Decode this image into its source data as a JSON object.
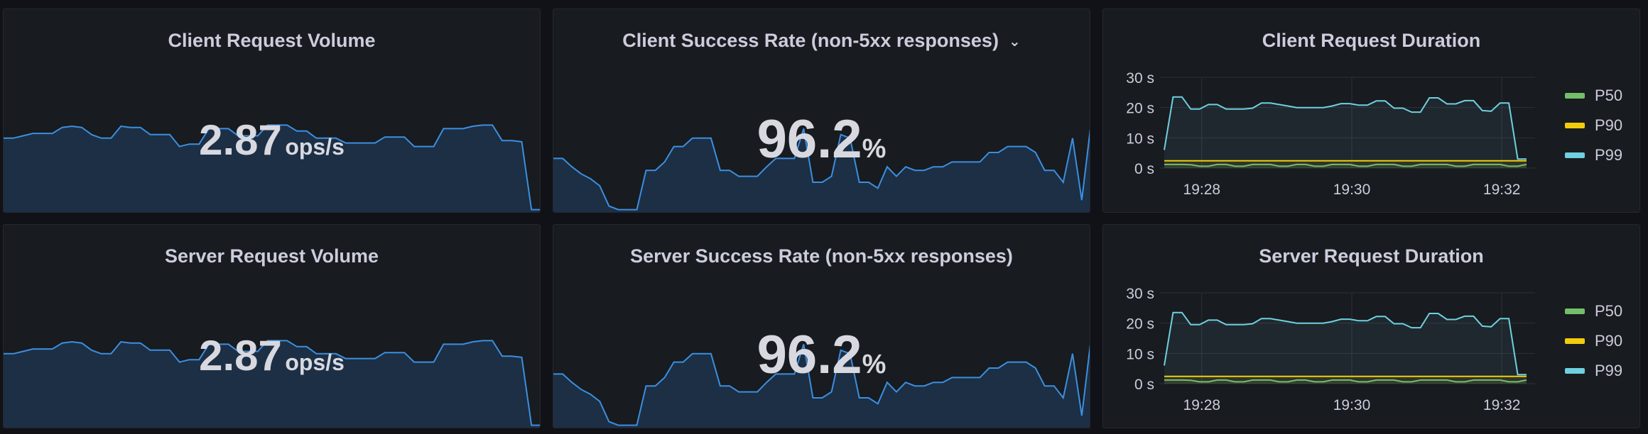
{
  "panels": {
    "client_volume": {
      "title": "Client Request Volume",
      "value": "2.87",
      "unit": "ops/s"
    },
    "client_success": {
      "title": "Client Success Rate (non-5xx responses)",
      "value": "96.2",
      "unit": "%"
    },
    "client_duration": {
      "title": "Client Request Duration"
    },
    "server_volume": {
      "title": "Server Request Volume",
      "value": "2.87",
      "unit": "ops/s"
    },
    "server_success": {
      "title": "Server Success Rate (non-5xx responses)",
      "value": "96.2",
      "unit": "%"
    },
    "server_duration": {
      "title": "Server Request Duration"
    }
  },
  "icons": {
    "menu_chevron": "chevron-down-icon"
  },
  "colors": {
    "sparkline_stroke": "#3b8fe0",
    "sparkline_fill": "#1c2f45",
    "p50": "#73bf69",
    "p90": "#f2cc0c",
    "p99": "#6ed0e0"
  },
  "chart_data": [
    {
      "type": "area",
      "panel": "Client Request Volume",
      "sparkline": true,
      "values": [
        0.62,
        0.62,
        0.64,
        0.66,
        0.66,
        0.66,
        0.71,
        0.72,
        0.71,
        0.65,
        0.62,
        0.62,
        0.72,
        0.71,
        0.71,
        0.65,
        0.65,
        0.65,
        0.55,
        0.57,
        0.57,
        0.7,
        0.7,
        0.7,
        0.64,
        0.64,
        0.64,
        0.73,
        0.73,
        0.73,
        0.68,
        0.68,
        0.62,
        0.62,
        0.62,
        0.58,
        0.58,
        0.58,
        0.58,
        0.63,
        0.63,
        0.63,
        0.55,
        0.55,
        0.55,
        0.7,
        0.7,
        0.7,
        0.72,
        0.73,
        0.73,
        0.6,
        0.6,
        0.59,
        0.02,
        0.02
      ]
    },
    {
      "type": "area",
      "panel": "Client Success Rate (non-5xx responses)",
      "sparkline": true,
      "values": [
        0.45,
        0.45,
        0.38,
        0.32,
        0.28,
        0.22,
        0.05,
        0.02,
        0.02,
        0.02,
        0.35,
        0.35,
        0.42,
        0.55,
        0.55,
        0.62,
        0.62,
        0.62,
        0.35,
        0.35,
        0.3,
        0.3,
        0.3,
        0.38,
        0.45,
        0.45,
        0.45,
        0.7,
        0.25,
        0.25,
        0.3,
        0.65,
        0.62,
        0.25,
        0.25,
        0.2,
        0.38,
        0.3,
        0.38,
        0.35,
        0.35,
        0.38,
        0.38,
        0.42,
        0.42,
        0.42,
        0.42,
        0.5,
        0.5,
        0.55,
        0.55,
        0.55,
        0.5,
        0.35,
        0.35,
        0.25,
        0.62,
        0.1,
        0.75
      ]
    },
    {
      "type": "line",
      "panel": "Client Request Duration",
      "x_ticks": [
        "19:28",
        "19:30",
        "19:32"
      ],
      "y_ticks": [
        "30 s",
        "20 s",
        "10 s",
        "0 s"
      ],
      "ylim": [
        0,
        30
      ],
      "x_range_min": [
        0,
        5.1
      ],
      "grid": true,
      "legend_position": "right",
      "series": [
        {
          "name": "P50",
          "values": [
            1.2,
            1.2,
            1.2,
            1.1,
            0.6,
            0.6,
            1.2,
            1.2,
            0.6,
            0.6,
            1.2,
            1.2,
            1.2,
            0.6,
            0.6,
            1.2,
            1.2,
            0.6,
            0.6,
            1.2,
            1.2,
            1.2,
            0.6,
            0.6,
            1.2,
            1.2,
            1.2,
            0.6,
            0.6,
            1.2,
            1.2,
            1.2,
            1.2,
            0.6,
            0.6,
            1.2,
            1.2,
            1.2,
            1.2,
            0.6,
            0.6,
            1.2
          ]
        },
        {
          "name": "P90",
          "values": [
            2.4,
            2.4,
            2.4,
            2.4,
            2.4,
            2.4,
            2.4,
            2.4,
            2.4,
            2.4,
            2.4,
            2.4,
            2.4,
            2.4,
            2.4,
            2.4,
            2.4,
            2.4,
            2.4,
            2.4,
            2.4,
            2.4,
            2.4,
            2.4,
            2.4,
            2.4,
            2.4,
            2.4,
            2.4,
            2.4,
            2.4,
            2.4,
            2.4,
            2.4,
            2.4,
            2.4,
            2.4,
            2.4,
            2.4,
            2.4,
            2.4,
            2.4
          ]
        },
        {
          "name": "P99",
          "values": [
            6,
            23.5,
            23.5,
            19.5,
            19.5,
            21,
            21,
            19.5,
            19.5,
            19.5,
            19.8,
            21.5,
            21.5,
            21,
            20.5,
            20,
            20,
            20,
            20,
            20.5,
            21.3,
            21.3,
            20.8,
            20.8,
            22.2,
            22.2,
            19.8,
            19.8,
            18.5,
            18.5,
            23.2,
            23.2,
            21.2,
            21.2,
            22.3,
            22.3,
            19,
            18.8,
            21.5,
            21.5,
            3,
            3
          ]
        }
      ]
    },
    {
      "type": "area",
      "panel": "Server Request Volume",
      "sparkline": true,
      "values": [
        0.62,
        0.62,
        0.64,
        0.66,
        0.66,
        0.66,
        0.71,
        0.72,
        0.71,
        0.65,
        0.62,
        0.62,
        0.72,
        0.71,
        0.71,
        0.65,
        0.65,
        0.65,
        0.55,
        0.57,
        0.57,
        0.7,
        0.7,
        0.7,
        0.64,
        0.64,
        0.64,
        0.73,
        0.73,
        0.73,
        0.68,
        0.68,
        0.62,
        0.62,
        0.62,
        0.58,
        0.58,
        0.58,
        0.58,
        0.63,
        0.63,
        0.63,
        0.55,
        0.55,
        0.55,
        0.7,
        0.7,
        0.7,
        0.72,
        0.73,
        0.73,
        0.6,
        0.6,
        0.59,
        0.02,
        0.02
      ]
    },
    {
      "type": "area",
      "panel": "Server Success Rate (non-5xx responses)",
      "sparkline": true,
      "values": [
        0.45,
        0.45,
        0.38,
        0.32,
        0.28,
        0.22,
        0.05,
        0.02,
        0.02,
        0.02,
        0.35,
        0.35,
        0.42,
        0.55,
        0.55,
        0.62,
        0.62,
        0.62,
        0.35,
        0.35,
        0.3,
        0.3,
        0.3,
        0.38,
        0.45,
        0.45,
        0.45,
        0.7,
        0.25,
        0.25,
        0.3,
        0.65,
        0.62,
        0.25,
        0.25,
        0.2,
        0.38,
        0.3,
        0.38,
        0.35,
        0.35,
        0.38,
        0.38,
        0.42,
        0.42,
        0.42,
        0.42,
        0.5,
        0.5,
        0.55,
        0.55,
        0.55,
        0.5,
        0.35,
        0.35,
        0.25,
        0.62,
        0.1,
        0.75
      ]
    },
    {
      "type": "line",
      "panel": "Server Request Duration",
      "x_ticks": [
        "19:28",
        "19:30",
        "19:32"
      ],
      "y_ticks": [
        "30 s",
        "20 s",
        "10 s",
        "0 s"
      ],
      "ylim": [
        0,
        30
      ],
      "grid": true,
      "legend_position": "right",
      "series": [
        {
          "name": "P50",
          "values": [
            1.2,
            1.2,
            1.2,
            1.1,
            0.6,
            0.6,
            1.2,
            1.2,
            0.6,
            0.6,
            1.2,
            1.2,
            1.2,
            0.6,
            0.6,
            1.2,
            1.2,
            0.6,
            0.6,
            1.2,
            1.2,
            1.2,
            0.6,
            0.6,
            1.2,
            1.2,
            1.2,
            0.6,
            0.6,
            1.2,
            1.2,
            1.2,
            1.2,
            0.6,
            0.6,
            1.2,
            1.2,
            1.2,
            1.2,
            0.6,
            0.6,
            1.2
          ]
        },
        {
          "name": "P90",
          "values": [
            2.4,
            2.4,
            2.4,
            2.4,
            2.4,
            2.4,
            2.4,
            2.4,
            2.4,
            2.4,
            2.4,
            2.4,
            2.4,
            2.4,
            2.4,
            2.4,
            2.4,
            2.4,
            2.4,
            2.4,
            2.4,
            2.4,
            2.4,
            2.4,
            2.4,
            2.4,
            2.4,
            2.4,
            2.4,
            2.4,
            2.4,
            2.4,
            2.4,
            2.4,
            2.4,
            2.4,
            2.4,
            2.4,
            2.4,
            2.4,
            2.4,
            2.4
          ]
        },
        {
          "name": "P99",
          "values": [
            6,
            23.5,
            23.5,
            19.5,
            19.5,
            21,
            21,
            19.5,
            19.5,
            19.5,
            19.8,
            21.5,
            21.5,
            21,
            20.5,
            20,
            20,
            20,
            20,
            20.5,
            21.3,
            21.3,
            20.8,
            20.8,
            22.2,
            22.2,
            19.8,
            19.8,
            18.5,
            18.5,
            23.2,
            23.2,
            21.2,
            21.2,
            22.3,
            22.3,
            19,
            18.8,
            21.5,
            21.5,
            3,
            3
          ]
        }
      ]
    }
  ]
}
